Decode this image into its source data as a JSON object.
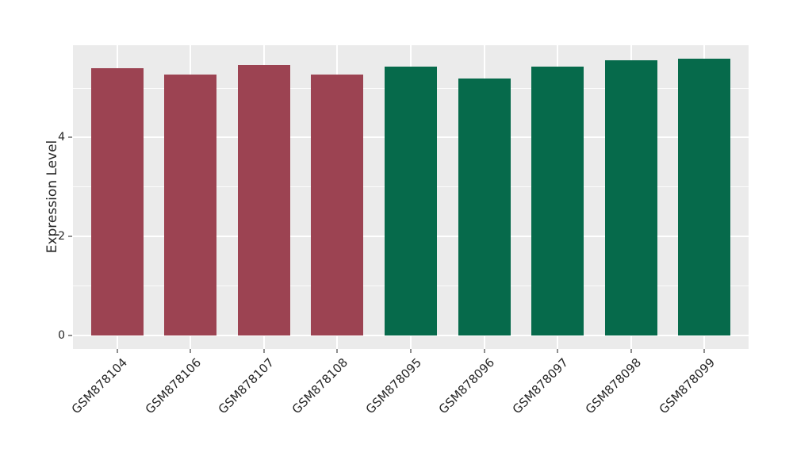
{
  "chart_data": {
    "type": "bar",
    "title": "",
    "ylabel": "Expression Level",
    "xlabel": "",
    "categories": [
      "GSM878104",
      "GSM878106",
      "GSM878107",
      "GSM878108",
      "GSM878095",
      "GSM878096",
      "GSM878097",
      "GSM878098",
      "GSM878099"
    ],
    "values": [
      5.4,
      5.28,
      5.47,
      5.28,
      5.43,
      5.19,
      5.43,
      5.56,
      5.6
    ],
    "bar_colors": [
      "#9C4352",
      "#9C4352",
      "#9C4352",
      "#9C4352",
      "#066A4B",
      "#066A4B",
      "#066A4B",
      "#066A4B",
      "#066A4B"
    ],
    "yticks": [
      0,
      2,
      4
    ],
    "yticks_minor": [
      1,
      3,
      5
    ],
    "ylim": [
      -0.28,
      5.87
    ],
    "legend_position": "none",
    "grid": "on",
    "panel_bg": "#EBEBEB",
    "grid_color": "#FFFFFF",
    "background": "#FFFFFF"
  }
}
